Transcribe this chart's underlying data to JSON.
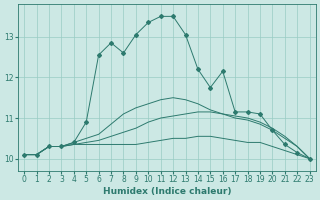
{
  "xlabel": "Humidex (Indice chaleur)",
  "bg_color": "#cce8e4",
  "grid_color": "#99ccc4",
  "line_color": "#2d7a6e",
  "xlim": [
    -0.5,
    23.5
  ],
  "ylim": [
    9.7,
    13.8
  ],
  "yticks": [
    10,
    11,
    12,
    13
  ],
  "xticks": [
    0,
    1,
    2,
    3,
    4,
    5,
    6,
    7,
    8,
    9,
    10,
    11,
    12,
    13,
    14,
    15,
    16,
    17,
    18,
    19,
    20,
    21,
    22,
    23
  ],
  "lines_no_marker": [
    [
      10.1,
      10.1,
      10.3,
      10.3,
      10.35,
      10.35,
      10.35,
      10.35,
      10.35,
      10.35,
      10.4,
      10.45,
      10.5,
      10.5,
      10.55,
      10.55,
      10.5,
      10.45,
      10.4,
      10.4,
      10.3,
      10.2,
      10.1,
      10.0
    ],
    [
      10.1,
      10.1,
      10.3,
      10.3,
      10.35,
      10.4,
      10.45,
      10.55,
      10.65,
      10.75,
      10.9,
      11.0,
      11.05,
      11.1,
      11.15,
      11.15,
      11.1,
      11.05,
      11.0,
      10.9,
      10.75,
      10.55,
      10.3,
      10.0
    ],
    [
      10.1,
      10.1,
      10.3,
      10.3,
      10.4,
      10.5,
      10.6,
      10.85,
      11.1,
      11.25,
      11.35,
      11.45,
      11.5,
      11.45,
      11.35,
      11.2,
      11.1,
      11.0,
      10.95,
      10.85,
      10.7,
      10.5,
      10.3,
      10.0
    ]
  ],
  "line_marker": [
    10.1,
    10.1,
    10.3,
    10.3,
    10.4,
    10.9,
    12.55,
    12.85,
    12.6,
    13.05,
    13.35,
    13.5,
    13.5,
    13.05,
    12.2,
    11.75,
    12.15,
    11.15,
    11.15,
    11.1,
    10.7,
    10.35,
    10.15,
    10.0
  ]
}
